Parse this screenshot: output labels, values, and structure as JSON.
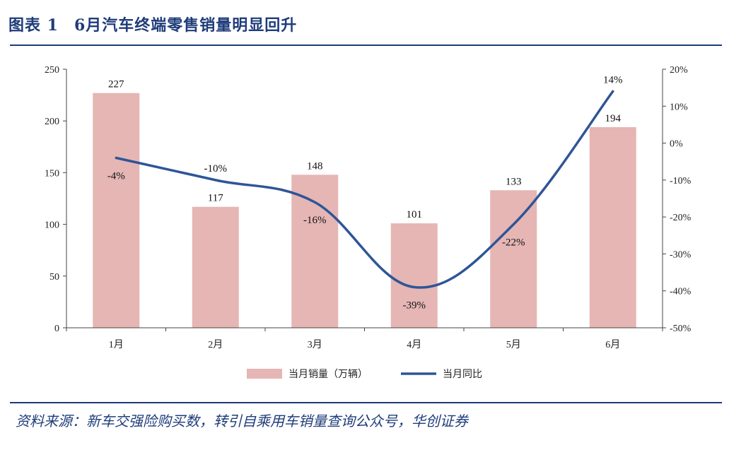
{
  "figure": {
    "label": "图表 1",
    "title": "6月汽车终端零售销量明显回升",
    "source": "资料来源：新车交强险购买数，转引自乘用车销量查询公众号，华创证券"
  },
  "colors": {
    "title": "#1f3c7a",
    "bar": "#e5b6b4",
    "line": "#2e5597"
  },
  "chart_data": {
    "type": "bar",
    "categories": [
      "1月",
      "2月",
      "3月",
      "4月",
      "5月",
      "6月"
    ],
    "series": [
      {
        "name": "当月销量（万辆）",
        "type": "bar",
        "axis": "left",
        "values": [
          227,
          117,
          148,
          101,
          133,
          194
        ],
        "labels": [
          "227",
          "117",
          "148",
          "101",
          "133",
          "194"
        ]
      },
      {
        "name": "当月同比",
        "type": "line",
        "axis": "right",
        "smooth": true,
        "values": [
          -4,
          -10,
          -16,
          -39,
          -22,
          14
        ],
        "labels": [
          "-4%",
          "-10%",
          "-16%",
          "-39%",
          "-22%",
          "14%"
        ]
      }
    ],
    "y_left": {
      "range": [
        0,
        250
      ],
      "ticks": [
        "0",
        "50",
        "100",
        "150",
        "200",
        "250"
      ]
    },
    "y_right": {
      "range": [
        -50,
        20
      ],
      "ticks": [
        "-50%",
        "-40%",
        "-30%",
        "-20%",
        "-10%",
        "0%",
        "10%",
        "20%"
      ]
    },
    "grid": false,
    "legend_position": "bottom"
  }
}
